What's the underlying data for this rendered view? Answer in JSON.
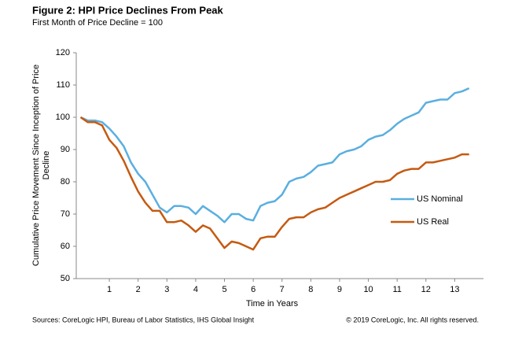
{
  "chart_data": {
    "type": "line",
    "title": "Figure 2: HPI Price Declines From Peak",
    "subtitle": "First Month of Price Decline = 100",
    "xlabel": "Time in Years",
    "ylabel": [
      "Cumulative  Price Movement  Since Inception of Price",
      "Decline"
    ],
    "source": "Sources: CoreLogic HPI,  Bureau of Labor Statistics, IHS Global Insight",
    "copyright": "© 2019 CoreLogic, Inc. All rights reserved.",
    "x": [
      0,
      0.25,
      0.5,
      0.75,
      1,
      1.25,
      1.5,
      1.75,
      2,
      2.25,
      2.5,
      2.75,
      3,
      3.25,
      3.5,
      3.75,
      4,
      4.25,
      4.5,
      4.75,
      5,
      5.25,
      5.5,
      5.75,
      6,
      6.25,
      6.5,
      6.75,
      7,
      7.25,
      7.5,
      7.75,
      8,
      8.25,
      8.5,
      8.75,
      9,
      9.25,
      9.5,
      9.75,
      10,
      10.25,
      10.5,
      10.75,
      11,
      11.25,
      11.5,
      11.75,
      12,
      12.25,
      12.5,
      12.75,
      13,
      13.25,
      13.5
    ],
    "series": [
      {
        "name": "US Nominal",
        "color": "#5aafe0",
        "values": [
          100,
          99,
          99,
          98.5,
          96.5,
          94,
          91,
          86,
          82.5,
          80,
          76,
          72,
          70.5,
          72.5,
          72.5,
          72,
          70,
          72.5,
          71,
          69.5,
          67.5,
          70,
          70,
          68.5,
          68,
          72.5,
          73.5,
          74,
          76,
          80,
          81,
          81.5,
          83,
          85,
          85.5,
          86,
          88.5,
          89.5,
          90,
          91,
          93,
          94,
          94.5,
          96,
          98,
          99.5,
          100.5,
          101.5,
          104.5,
          105,
          105.5,
          105.5,
          107.5,
          108,
          109
        ]
      },
      {
        "name": "US Real",
        "color": "#c55a11",
        "values": [
          100,
          98.5,
          98.5,
          97.5,
          93,
          90.5,
          86.5,
          81.5,
          77,
          73.5,
          71,
          71,
          67.5,
          67.5,
          68,
          66.5,
          64.5,
          66.5,
          65.5,
          62.5,
          59.5,
          61.5,
          61,
          60,
          59,
          62.5,
          63,
          63,
          66,
          68.5,
          69,
          69,
          70.5,
          71.5,
          72,
          73.5,
          75,
          76,
          77,
          78,
          79,
          80,
          80,
          80.5,
          82.5,
          83.5,
          84,
          84,
          86,
          86,
          86.5,
          87,
          87.5,
          88.5,
          88.5
        ]
      }
    ],
    "xlim": [
      -0.15,
      14
    ],
    "xticks": [
      1,
      2,
      3,
      4,
      5,
      6,
      7,
      8,
      9,
      10,
      11,
      12,
      13
    ],
    "ylim": [
      50,
      120
    ],
    "yticks": [
      50,
      60,
      70,
      80,
      90,
      100,
      110,
      120
    ],
    "legend": "right"
  }
}
